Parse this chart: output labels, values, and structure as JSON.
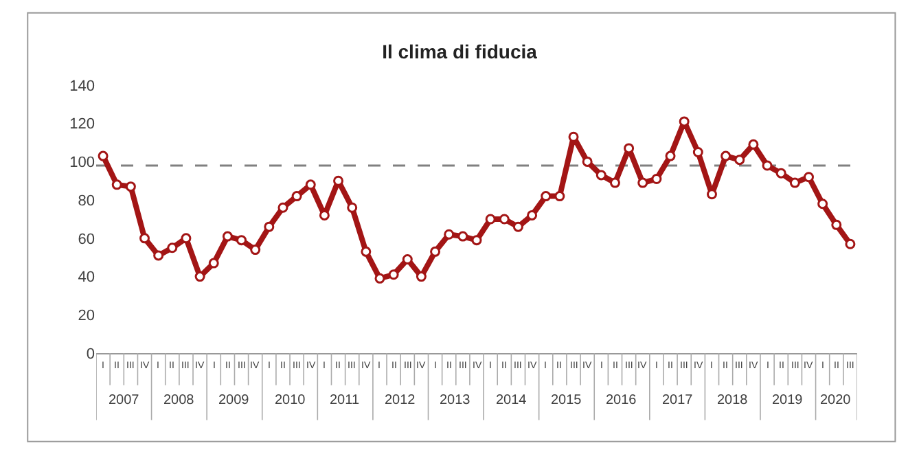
{
  "chart_data": {
    "type": "line",
    "title": "Il clima di fiducia",
    "categories": [
      "I",
      "II",
      "III",
      "IV",
      "I",
      "II",
      "III",
      "IV",
      "I",
      "II",
      "III",
      "IV",
      "I",
      "II",
      "III",
      "IV",
      "I",
      "II",
      "III",
      "IV",
      "I",
      "II",
      "III",
      "IV",
      "I",
      "II",
      "III",
      "IV",
      "I",
      "II",
      "III",
      "IV",
      "I",
      "II",
      "III",
      "IV",
      "I",
      "II",
      "III",
      "IV",
      "I",
      "II",
      "III",
      "IV",
      "I",
      "II",
      "III",
      "IV",
      "I",
      "II",
      "III",
      "IV",
      "I",
      "II",
      "III"
    ],
    "series": [
      {
        "color": "#a31515",
        "values": [
          103,
          88,
          87,
          60,
          51,
          55,
          60,
          40,
          47,
          61,
          59,
          54,
          66,
          76,
          82,
          88,
          72,
          90,
          76,
          53,
          39,
          41,
          49,
          40,
          53,
          62,
          61,
          59,
          70,
          70,
          66,
          72,
          82,
          82,
          113,
          100,
          93,
          89,
          107,
          89,
          91,
          103,
          121,
          105,
          83,
          103,
          101,
          109,
          98,
          94,
          89,
          92,
          78,
          67,
          57
        ]
      }
    ],
    "annotations": [
      "2007",
      "2008",
      "2009",
      "2010",
      "2011",
      "2012",
      "2013",
      "2014",
      "2015",
      "2016",
      "2017",
      "2018",
      "2019",
      "2020"
    ],
    "ref_lines": [
      {
        "axis": "y",
        "value": 98,
        "color": "#808080",
        "line_style": "dashed"
      }
    ],
    "ylim": [
      0,
      140
    ],
    "yticks": [
      0,
      20,
      40,
      60,
      80,
      100,
      120,
      140
    ],
    "grid": false,
    "marker": "circle",
    "line_style": "solid"
  }
}
